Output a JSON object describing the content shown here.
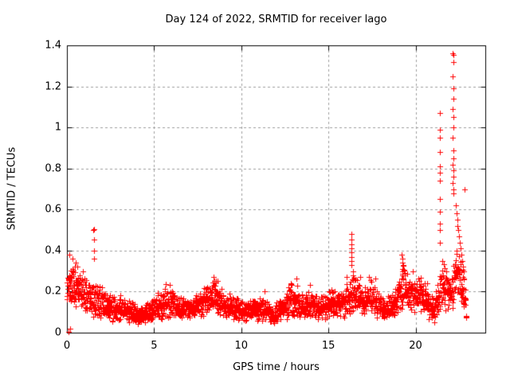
{
  "chart_data": {
    "type": "scatter",
    "title": "Day 124 of 2022, SRMTID for receiver lago",
    "xlabel": "GPS time / hours",
    "ylabel": "SRMTID / TECUs",
    "xlim": [
      0,
      24
    ],
    "ylim": [
      0,
      1.4
    ],
    "xticks": [
      0,
      5,
      10,
      15,
      20
    ],
    "xtick_labels": [
      "0",
      "5",
      "10",
      "15",
      "20"
    ],
    "yticks": [
      0,
      0.2,
      0.4,
      0.6,
      0.8,
      1.0,
      1.2,
      1.4
    ],
    "ytick_labels": [
      "0",
      "0.2",
      "0.4",
      "0.6",
      "0.8",
      "1",
      "1.2",
      "1.4"
    ],
    "grid": true,
    "grid_style": "dashed",
    "legend": "none",
    "marker": "plus",
    "marker_size_px": 7,
    "colors": {
      "marker": "#ff0000",
      "grid": "#9e9e9e",
      "axis": "#000000",
      "background": "#ffffff",
      "text": "#000000"
    },
    "data_end_hour": 22.92,
    "baseline_profile_x_mean_spread": [
      [
        0.0,
        0.22,
        0.14
      ],
      [
        0.3,
        0.24,
        0.1
      ],
      [
        0.7,
        0.21,
        0.09
      ],
      [
        1.2,
        0.17,
        0.08
      ],
      [
        1.8,
        0.15,
        0.08
      ],
      [
        2.3,
        0.12,
        0.06
      ],
      [
        3.0,
        0.12,
        0.06
      ],
      [
        3.6,
        0.1,
        0.05
      ],
      [
        4.2,
        0.08,
        0.04
      ],
      [
        4.8,
        0.1,
        0.05
      ],
      [
        5.4,
        0.13,
        0.06
      ],
      [
        5.9,
        0.15,
        0.07
      ],
      [
        6.5,
        0.12,
        0.05
      ],
      [
        7.1,
        0.12,
        0.05
      ],
      [
        7.8,
        0.15,
        0.07
      ],
      [
        8.5,
        0.18,
        0.09
      ],
      [
        9.2,
        0.13,
        0.06
      ],
      [
        10.0,
        0.11,
        0.05
      ],
      [
        10.6,
        0.11,
        0.05
      ],
      [
        11.3,
        0.12,
        0.06
      ],
      [
        11.8,
        0.08,
        0.04
      ],
      [
        12.3,
        0.12,
        0.06
      ],
      [
        12.9,
        0.16,
        0.08
      ],
      [
        13.4,
        0.13,
        0.06
      ],
      [
        14.0,
        0.13,
        0.06
      ],
      [
        14.6,
        0.12,
        0.06
      ],
      [
        15.2,
        0.15,
        0.07
      ],
      [
        15.8,
        0.13,
        0.06
      ],
      [
        16.4,
        0.19,
        0.09
      ],
      [
        17.0,
        0.15,
        0.07
      ],
      [
        17.5,
        0.17,
        0.08
      ],
      [
        18.2,
        0.11,
        0.05
      ],
      [
        18.8,
        0.14,
        0.07
      ],
      [
        19.3,
        0.23,
        0.1
      ],
      [
        19.8,
        0.18,
        0.08
      ],
      [
        20.3,
        0.19,
        0.09
      ],
      [
        20.8,
        0.12,
        0.06
      ],
      [
        21.1,
        0.11,
        0.06
      ],
      [
        21.5,
        0.24,
        0.12
      ],
      [
        22.0,
        0.19,
        0.09
      ],
      [
        22.4,
        0.3,
        0.13
      ],
      [
        22.7,
        0.22,
        0.11
      ],
      [
        22.92,
        0.15,
        0.08
      ]
    ],
    "outlier_points_x_y": [
      [
        0.1,
        0.005
      ],
      [
        0.16,
        0.02
      ],
      [
        0.15,
        0.38
      ],
      [
        0.3,
        0.36
      ],
      [
        0.5,
        0.34
      ],
      [
        1.53,
        0.5
      ],
      [
        1.56,
        0.505
      ],
      [
        1.55,
        0.455
      ],
      [
        1.55,
        0.4
      ],
      [
        1.54,
        0.36
      ],
      [
        16.31,
        0.48
      ],
      [
        16.31,
        0.455
      ],
      [
        16.31,
        0.43
      ],
      [
        16.31,
        0.41
      ],
      [
        16.31,
        0.39
      ],
      [
        16.31,
        0.37
      ],
      [
        16.32,
        0.35
      ],
      [
        16.32,
        0.33
      ],
      [
        16.4,
        0.3
      ],
      [
        16.42,
        0.28
      ],
      [
        19.22,
        0.38
      ],
      [
        19.25,
        0.36
      ],
      [
        19.24,
        0.34
      ],
      [
        19.27,
        0.33
      ],
      [
        19.23,
        0.31
      ],
      [
        19.26,
        0.3
      ],
      [
        19.25,
        0.28
      ],
      [
        21.39,
        1.07
      ],
      [
        21.4,
        0.99
      ],
      [
        21.39,
        0.95
      ],
      [
        21.38,
        0.88
      ],
      [
        21.4,
        0.81
      ],
      [
        21.39,
        0.78
      ],
      [
        21.38,
        0.74
      ],
      [
        21.4,
        0.65
      ],
      [
        21.39,
        0.59
      ],
      [
        21.38,
        0.53
      ],
      [
        21.4,
        0.5
      ],
      [
        21.39,
        0.44
      ],
      [
        22.14,
        1.36
      ],
      [
        22.16,
        1.355
      ],
      [
        22.15,
        1.32
      ],
      [
        22.14,
        1.25
      ],
      [
        22.15,
        1.19
      ],
      [
        22.16,
        1.14
      ],
      [
        22.14,
        1.09
      ],
      [
        22.15,
        1.05
      ],
      [
        22.16,
        1.0
      ],
      [
        22.14,
        0.95
      ],
      [
        22.15,
        0.89
      ],
      [
        22.16,
        0.85
      ],
      [
        22.14,
        0.82
      ],
      [
        22.15,
        0.79
      ],
      [
        22.16,
        0.76
      ],
      [
        22.14,
        0.73
      ],
      [
        22.15,
        0.7
      ],
      [
        22.16,
        0.68
      ],
      [
        22.3,
        0.62
      ],
      [
        22.34,
        0.58
      ],
      [
        22.38,
        0.55
      ],
      [
        22.42,
        0.52
      ],
      [
        22.46,
        0.5
      ],
      [
        22.5,
        0.47
      ],
      [
        22.54,
        0.44
      ],
      [
        22.58,
        0.41
      ],
      [
        22.62,
        0.38
      ],
      [
        22.66,
        0.35
      ],
      [
        22.7,
        0.32
      ],
      [
        22.75,
        0.3
      ],
      [
        22.81,
        0.7
      ]
    ],
    "sampling": {
      "step_hours": 0.02,
      "points_per_step": 2,
      "seed": 124,
      "noise_scale": 1.15
    }
  }
}
